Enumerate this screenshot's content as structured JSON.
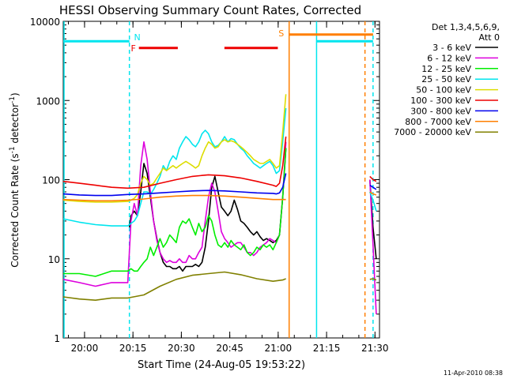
{
  "chart_data": {
    "type": "line",
    "title": "HESSI Observing Summary Count Rates, Corrected",
    "xlabel": "Start Time (24-Aug-05 19:53:22)",
    "ylabel_main": "Corrected Count Rate (s",
    "ylabel_sup1": "-1",
    "ylabel_mid": " detector",
    "ylabel_sup2": "-1",
    "ylabel_end": ")",
    "ylog": true,
    "ylim": [
      1,
      10000
    ],
    "xlim_minutes": [
      0,
      98
    ],
    "x_tick_labels": [
      "20:00",
      "20:15",
      "20:30",
      "20:45",
      "21:00",
      "21:15",
      "21:30"
    ],
    "x_tick_minutes": [
      6.6,
      21.6,
      36.6,
      51.6,
      66.6,
      81.6,
      96.6
    ],
    "y_tick_labels": [
      "1",
      "10",
      "100",
      "1000",
      "10000"
    ],
    "y_tick_values": [
      1,
      10,
      100,
      1000,
      10000
    ],
    "legend_header": [
      "Det 1,3,4,5,6,9,",
      "Att 0"
    ],
    "footer": "11-Apr-2010 08:38",
    "flags": [
      {
        "label": "N",
        "kind": "night",
        "color": "#00e5ee",
        "segments": [
          [
            0,
            20.5
          ],
          [
            78.5,
            96
          ]
        ],
        "level": 5600
      },
      {
        "label": "F",
        "kind": "flare",
        "color": "#ee0000",
        "segments": [
          [
            20.5,
            35.5
          ],
          [
            47,
            66.5
          ]
        ],
        "level": 4600
      },
      {
        "label": "S",
        "kind": "saa",
        "color": "#ff7f00",
        "segments": [
          [
            70,
            96
          ]
        ],
        "level": 6800
      }
    ],
    "vlines": [
      {
        "minute": 0,
        "color": "#00e5ee",
        "style": "solid"
      },
      {
        "minute": 20.5,
        "color": "#00e5ee",
        "style": "dashed"
      },
      {
        "minute": 70,
        "color": "#ff7f00",
        "style": "solid"
      },
      {
        "minute": 78.5,
        "color": "#00e5ee",
        "style": "solid"
      },
      {
        "minute": 93.5,
        "color": "#ff7f00",
        "style": "dashed"
      },
      {
        "minute": 96,
        "color": "#00e5ee",
        "style": "dashed"
      }
    ],
    "series": [
      {
        "name": "3 - 6 keV",
        "color": "#000000",
        "x": [
          20.5,
          21,
          22,
          23,
          24,
          25,
          26,
          27,
          28,
          29,
          30,
          31,
          32,
          33,
          34,
          35,
          36,
          37,
          38,
          39,
          40,
          41,
          42,
          43,
          44,
          45,
          46,
          47,
          48,
          49,
          50,
          51,
          52,
          53,
          54,
          55,
          56,
          57,
          58,
          59,
          60,
          61,
          62,
          63,
          64,
          65,
          66,
          67,
          68,
          69,
          95,
          96,
          97
        ],
        "y": [
          25,
          35,
          40,
          35,
          70,
          160,
          120,
          60,
          30,
          18,
          12,
          9,
          8,
          8,
          7.5,
          7.5,
          8,
          7,
          8,
          8,
          8,
          8.5,
          8,
          9,
          14,
          30,
          80,
          110,
          70,
          45,
          40,
          35,
          40,
          55,
          42,
          30,
          28,
          25,
          22,
          20,
          22,
          19,
          17,
          18,
          17,
          16,
          17,
          20,
          60,
          250,
          100,
          25,
          10
        ]
      },
      {
        "name": "6 - 12 keV",
        "color": "#dd00dd",
        "x": [
          0,
          5,
          10,
          15,
          20,
          21,
          22,
          23,
          24,
          25,
          26,
          27,
          28,
          29,
          30,
          31,
          32,
          33,
          34,
          35,
          36,
          37,
          38,
          39,
          40,
          41,
          42,
          43,
          44,
          45,
          46,
          47,
          48,
          49,
          50,
          51,
          52,
          53,
          54,
          55,
          56,
          57,
          58,
          59,
          60,
          61,
          62,
          63,
          64,
          65,
          66,
          67,
          68,
          69,
          95,
          96,
          97
        ],
        "y": [
          5.5,
          5,
          4.5,
          5,
          5,
          30,
          50,
          35,
          150,
          300,
          180,
          70,
          30,
          17,
          12,
          10,
          9,
          9.5,
          9,
          9,
          10,
          9,
          9,
          11,
          10,
          10,
          12,
          14,
          30,
          60,
          90,
          70,
          40,
          22,
          18,
          16,
          14,
          15,
          16,
          16,
          14,
          12,
          12,
          11,
          12,
          14,
          15,
          16,
          18,
          17,
          16,
          20,
          60,
          300,
          100,
          15,
          2
        ]
      },
      {
        "name": "12 - 25 keV",
        "color": "#00ee00",
        "x": [
          0,
          5,
          10,
          15,
          20,
          21,
          22,
          23,
          24,
          25,
          26,
          27,
          28,
          29,
          30,
          31,
          32,
          33,
          34,
          35,
          36,
          37,
          38,
          39,
          40,
          41,
          42,
          43,
          44,
          45,
          46,
          47,
          48,
          49,
          50,
          51,
          52,
          53,
          54,
          55,
          56,
          57,
          58,
          59,
          60,
          61,
          62,
          63,
          64,
          65,
          66,
          67,
          68,
          69
        ],
        "y": [
          6.5,
          6.5,
          6,
          7,
          7,
          7.5,
          7,
          7,
          8,
          9,
          10,
          14,
          11,
          14,
          18,
          14,
          16,
          20,
          18,
          16,
          25,
          30,
          28,
          32,
          25,
          20,
          28,
          22,
          25,
          35,
          30,
          20,
          15,
          14,
          16,
          14,
          17,
          15,
          14,
          13,
          15,
          12,
          11,
          12,
          14,
          13,
          15,
          14,
          15,
          13,
          16,
          20,
          60,
          250
        ]
      },
      {
        "name": "25 - 50 keV",
        "color": "#00e5ee",
        "x": [
          0,
          5,
          10,
          15,
          20,
          21,
          22,
          23,
          24,
          25,
          26,
          27,
          28,
          29,
          30,
          31,
          32,
          33,
          34,
          35,
          36,
          37,
          38,
          39,
          40,
          41,
          42,
          43,
          44,
          45,
          46,
          47,
          48,
          49,
          50,
          51,
          52,
          53,
          54,
          55,
          56,
          57,
          58,
          59,
          60,
          61,
          62,
          63,
          64,
          65,
          66,
          67,
          68,
          69,
          95,
          96,
          97
        ],
        "y": [
          32,
          29,
          27,
          26,
          26,
          28,
          30,
          35,
          50,
          70,
          70,
          65,
          75,
          90,
          110,
          150,
          130,
          170,
          200,
          180,
          250,
          300,
          350,
          320,
          280,
          260,
          300,
          380,
          420,
          380,
          300,
          260,
          270,
          300,
          350,
          300,
          330,
          320,
          280,
          250,
          230,
          200,
          180,
          160,
          150,
          140,
          150,
          160,
          170,
          150,
          120,
          130,
          300,
          800,
          70,
          55,
          40
        ]
      },
      {
        "name": "50 - 100 keV",
        "color": "#dddd00",
        "x": [
          0,
          5,
          10,
          15,
          20,
          21,
          22,
          23,
          24,
          25,
          26,
          27,
          28,
          29,
          30,
          31,
          32,
          33,
          34,
          35,
          36,
          37,
          38,
          39,
          40,
          41,
          42,
          43,
          44,
          45,
          46,
          47,
          48,
          49,
          50,
          51,
          52,
          53,
          54,
          55,
          56,
          57,
          58,
          59,
          60,
          61,
          62,
          63,
          64,
          65,
          66,
          67,
          68,
          69
        ],
        "y": [
          55,
          53,
          52,
          52,
          53,
          55,
          58,
          65,
          90,
          110,
          100,
          85,
          90,
          105,
          120,
          140,
          130,
          140,
          150,
          140,
          150,
          160,
          170,
          160,
          150,
          140,
          150,
          200,
          250,
          300,
          280,
          250,
          260,
          300,
          320,
          300,
          310,
          300,
          280,
          260,
          240,
          220,
          200,
          180,
          170,
          160,
          160,
          170,
          180,
          160,
          140,
          150,
          400,
          1200
        ]
      },
      {
        "name": "100 - 300 keV",
        "color": "#ee0000",
        "x": [
          0,
          5,
          10,
          15,
          20,
          25,
          30,
          35,
          40,
          45,
          50,
          55,
          60,
          65,
          66,
          67,
          68,
          69,
          95,
          96,
          97
        ],
        "y": [
          95,
          90,
          85,
          80,
          78,
          80,
          90,
          100,
          110,
          115,
          112,
          105,
          95,
          85,
          82,
          90,
          150,
          350,
          110,
          100,
          95
        ]
      },
      {
        "name": "300 - 800 keV",
        "color": "#0000ee",
        "x": [
          0,
          5,
          10,
          15,
          20,
          25,
          30,
          35,
          40,
          45,
          50,
          55,
          60,
          65,
          66,
          67,
          68,
          69,
          95,
          96,
          97
        ],
        "y": [
          66,
          64,
          63,
          63,
          65,
          66,
          68,
          70,
          72,
          73,
          72,
          70,
          68,
          67,
          66,
          68,
          80,
          120,
          85,
          80,
          75
        ]
      },
      {
        "name": "800 - 7000 keV",
        "color": "#ff7f00",
        "x": [
          0,
          5,
          10,
          15,
          20,
          25,
          30,
          35,
          40,
          45,
          50,
          55,
          60,
          65,
          69,
          95,
          96,
          97
        ],
        "y": [
          56,
          55,
          54,
          54,
          55,
          57,
          60,
          62,
          63,
          63,
          62,
          60,
          58,
          56,
          56,
          70,
          66,
          64
        ]
      },
      {
        "name": "7000 - 20000 keV",
        "color": "#808000",
        "x": [
          0,
          5,
          10,
          15,
          20,
          25,
          30,
          35,
          40,
          45,
          50,
          55,
          60,
          65,
          68,
          69,
          95,
          96,
          97
        ],
        "y": [
          3.3,
          3.1,
          3.0,
          3.2,
          3.2,
          3.5,
          4.5,
          5.5,
          6.2,
          6.5,
          6.8,
          6.3,
          5.6,
          5.2,
          5.4,
          5.6,
          5.5,
          5.6,
          5.4
        ]
      }
    ]
  }
}
